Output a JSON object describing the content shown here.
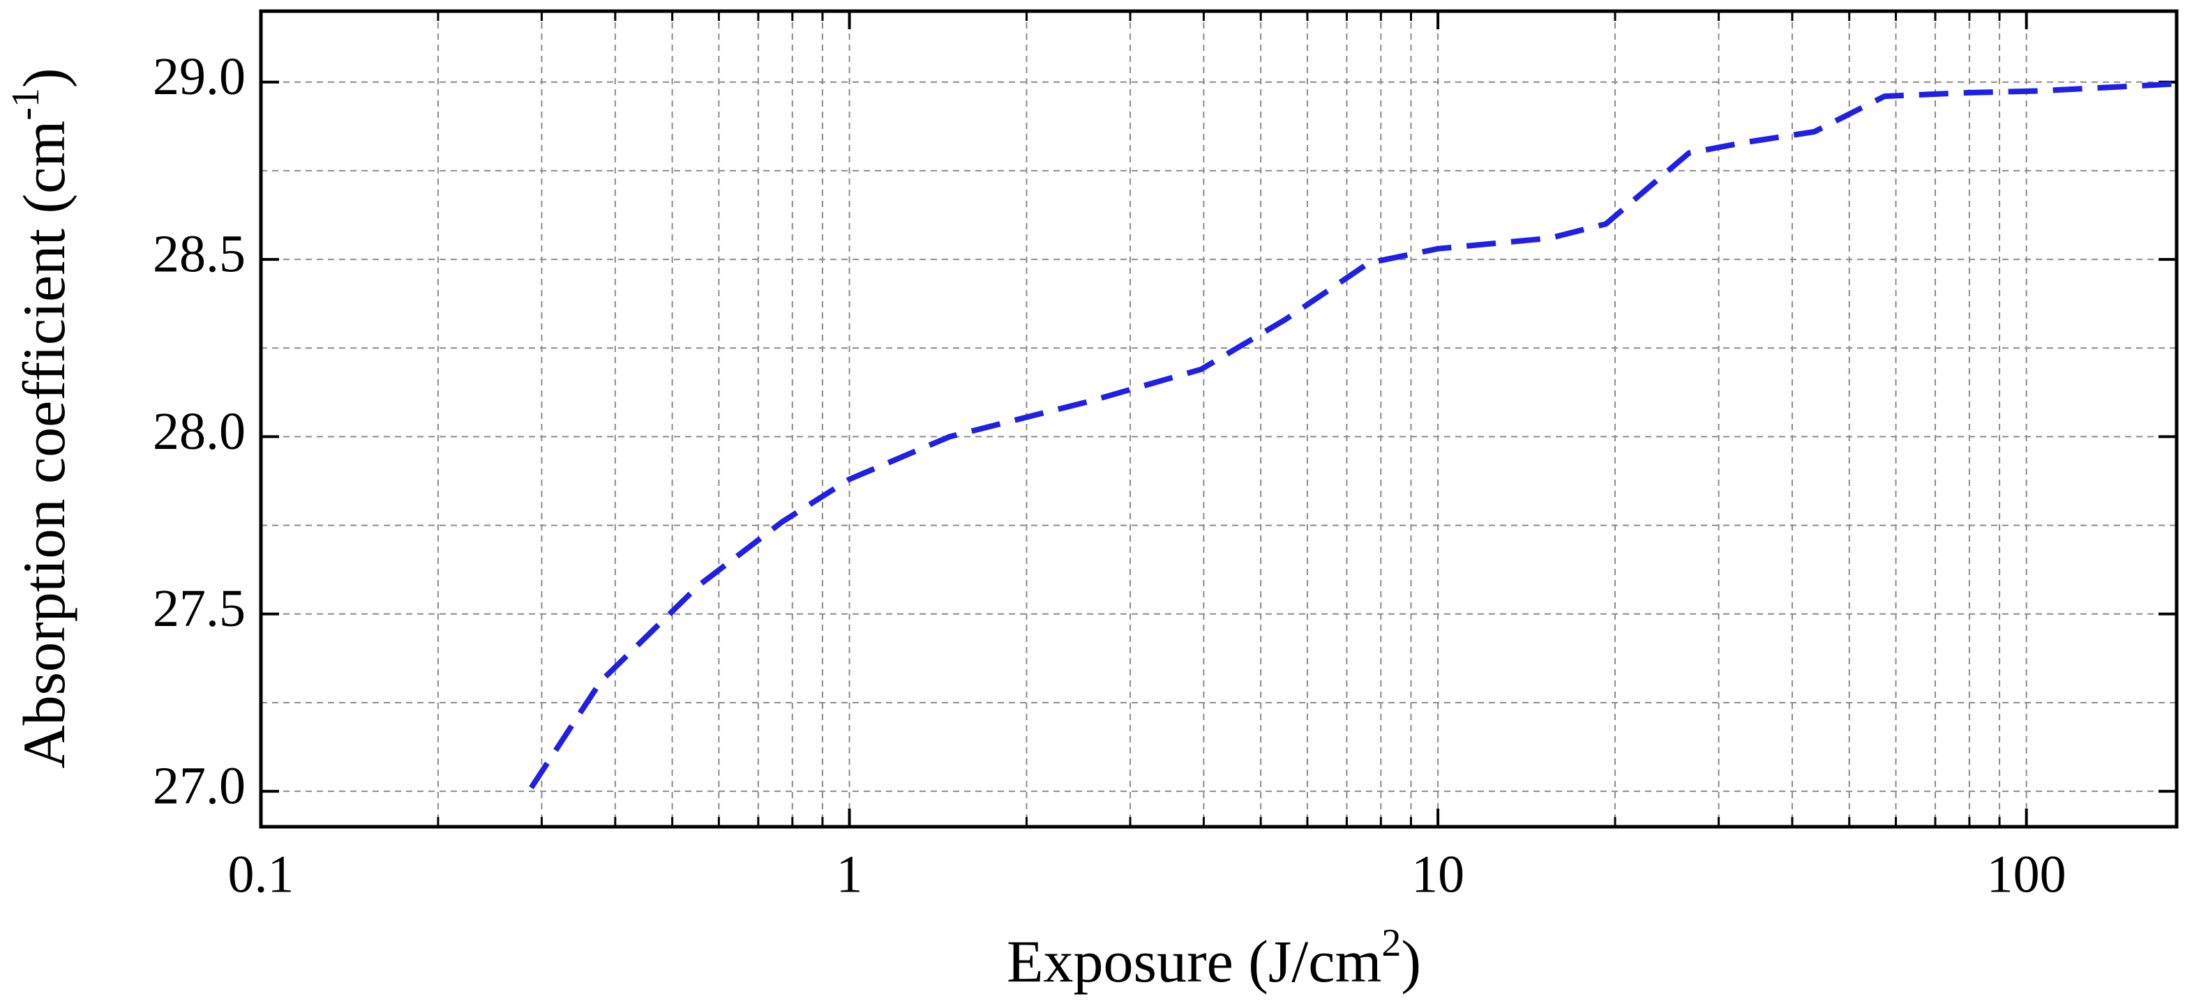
{
  "chart_data": {
    "type": "line",
    "xlabel": [
      "Exposure (J/cm",
      "2",
      ")"
    ],
    "ylabel": [
      "Absorption coefficient (cm",
      "-1",
      ")"
    ],
    "xscale": "log",
    "xlim": [
      0.1,
      180
    ],
    "ylim": [
      26.9,
      29.2
    ],
    "xticks": [
      0.1,
      1,
      10,
      100
    ],
    "yticks": [
      {
        "value": 27.0,
        "label": "27.0"
      },
      {
        "value": 27.5,
        "label": "27.5"
      },
      {
        "value": 28.0,
        "label": "28.0"
      },
      {
        "value": 28.5,
        "label": "28.5"
      },
      {
        "value": 29.0,
        "label": "29.0"
      }
    ],
    "grid": true,
    "minor_grid": true,
    "x": [
      0.288,
      0.378,
      0.554,
      0.769,
      1,
      1.48,
      2.56,
      3.96,
      5.5,
      7.63,
      10,
      15.5,
      19.3,
      26.7,
      33.3,
      43.6,
      57.4,
      79.4,
      104.8,
      180
    ],
    "series": [
      {
        "color": "#1f1fe6",
        "dashed": true,
        "values": [
          27.01,
          27.31,
          27.58,
          27.76,
          27.88,
          28.0,
          28.1,
          28.19,
          28.33,
          28.49,
          28.53,
          28.56,
          28.6,
          28.8,
          28.83,
          28.86,
          28.96,
          28.97,
          28.975,
          28.995
        ]
      }
    ]
  }
}
